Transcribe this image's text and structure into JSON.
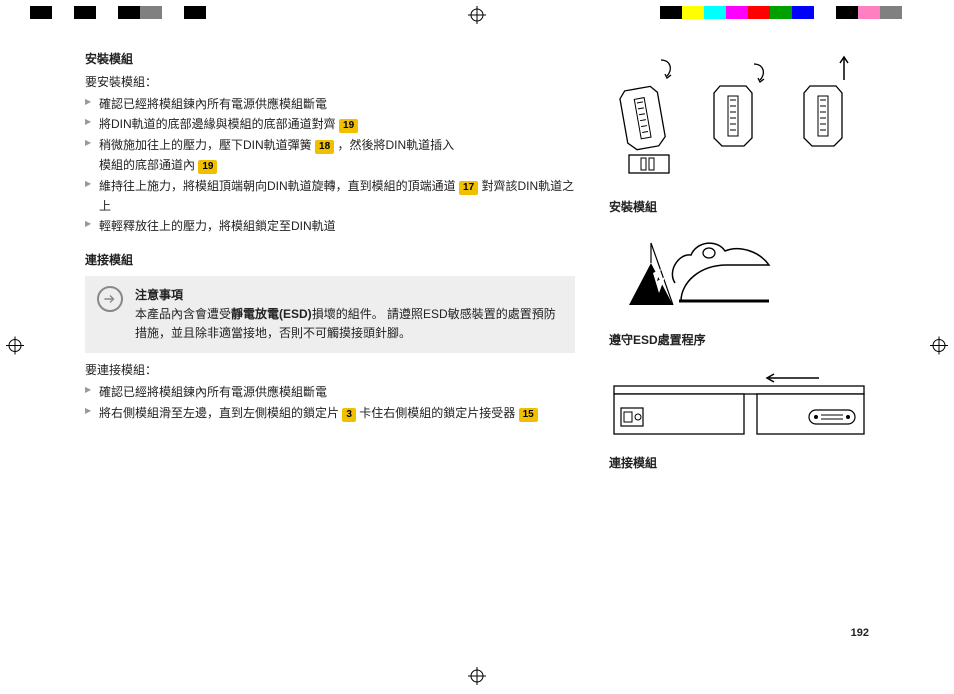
{
  "colorBarLeft": [
    "#000000",
    "#ffffff",
    "#000000",
    "#ffffff",
    "#000000",
    "#808080",
    "#ffffff",
    "#000000"
  ],
  "colorBarRight": [
    "#000000",
    "#ffff00",
    "#00ffff",
    "#ff00ff",
    "#ff0000",
    "#00a000",
    "#0000ff",
    "#ffffff",
    "#000000",
    "#ff80c0",
    "#808080",
    "#ffffff"
  ],
  "sectionInstall": {
    "title": "安裝模組",
    "intro": "要安裝模組：",
    "steps": [
      {
        "parts": [
          "確認已經將模組鍊內所有電源供應模組斷電"
        ],
        "tags": []
      },
      {
        "parts": [
          "將DIN軌道的底部邊緣與模組的底部通道對齊 "
        ],
        "tags": [
          "19"
        ]
      },
      {
        "parts": [
          "稍微施加往上的壓力，壓下DIN軌道彈簧 ",
          " ，然後將DIN軌道插入\n模組的底部通道內 "
        ],
        "tags": [
          "18",
          "19"
        ]
      },
      {
        "parts": [
          "維持往上施力，將模組頂端朝向DIN軌道旋轉，直到模組的頂端通道 ",
          " 對齊該DIN軌道之上"
        ],
        "tags": [
          "17"
        ]
      },
      {
        "parts": [
          "輕輕釋放往上的壓力，將模組鎖定至DIN軌道"
        ],
        "tags": []
      }
    ]
  },
  "sectionConnect": {
    "title": "連接模組",
    "notice": {
      "title": "注意事項",
      "body": [
        "本產品內含會遭受",
        "靜電放電(ESD)",
        "損壞的組件。 請遵照ESD敏感裝置的處置預防措施，並且除非適當接地，否則不可觸摸接頭針腳。"
      ]
    },
    "intro": "要連接模組：",
    "steps": [
      {
        "parts": [
          "確認已經將模組鍊內所有電源供應模組斷電"
        ],
        "tags": []
      },
      {
        "parts": [
          "將右側模組滑至左邊，直到左側模組的鎖定片 ",
          "  卡住右側模組的鎖定片接受器 "
        ],
        "tags": [
          "3",
          "15"
        ]
      }
    ]
  },
  "captions": {
    "install": "安裝模組",
    "esd": "遵守ESD處置程序",
    "connect": "連接模組"
  },
  "pageNumber": "192",
  "colors": {
    "tagBg": "#f0c000",
    "noticeBg": "#eeeeee",
    "bulletArrow": "#999999"
  }
}
